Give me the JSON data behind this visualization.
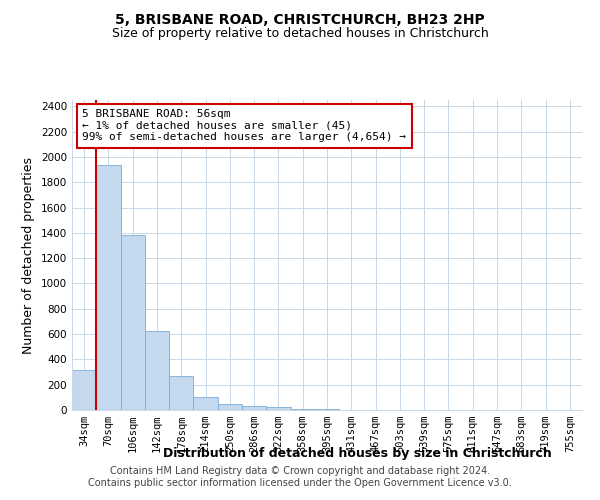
{
  "title": "5, BRISBANE ROAD, CHRISTCHURCH, BH23 2HP",
  "subtitle": "Size of property relative to detached houses in Christchurch",
  "xlabel": "Distribution of detached houses by size in Christchurch",
  "ylabel": "Number of detached properties",
  "footer1": "Contains HM Land Registry data © Crown copyright and database right 2024.",
  "footer2": "Contains public sector information licensed under the Open Government Licence v3.0.",
  "bar_labels": [
    "34sqm",
    "70sqm",
    "106sqm",
    "142sqm",
    "178sqm",
    "214sqm",
    "250sqm",
    "286sqm",
    "322sqm",
    "358sqm",
    "395sqm",
    "431sqm",
    "467sqm",
    "503sqm",
    "539sqm",
    "575sqm",
    "611sqm",
    "647sqm",
    "683sqm",
    "719sqm",
    "755sqm"
  ],
  "bar_values": [
    320,
    1940,
    1380,
    625,
    270,
    100,
    45,
    30,
    20,
    10,
    5,
    3,
    2,
    1,
    1,
    0,
    0,
    0,
    0,
    0,
    0
  ],
  "bar_color": "#c5d9ee",
  "bar_edge_color": "#7aaed6",
  "highlight_color": "#cc0000",
  "annotation_text": "5 BRISBANE ROAD: 56sqm\n← 1% of detached houses are smaller (45)\n99% of semi-detached houses are larger (4,654) →",
  "annotation_box_color": "#ffffff",
  "annotation_box_edge": "#cc0000",
  "ylim": [
    0,
    2450
  ],
  "yticks": [
    0,
    200,
    400,
    600,
    800,
    1000,
    1200,
    1400,
    1600,
    1800,
    2000,
    2200,
    2400
  ],
  "bg_color": "#ffffff",
  "grid_color": "#c8d8e8",
  "title_fontsize": 10,
  "subtitle_fontsize": 9,
  "axis_label_fontsize": 9,
  "tick_fontsize": 7.5,
  "footer_fontsize": 7
}
